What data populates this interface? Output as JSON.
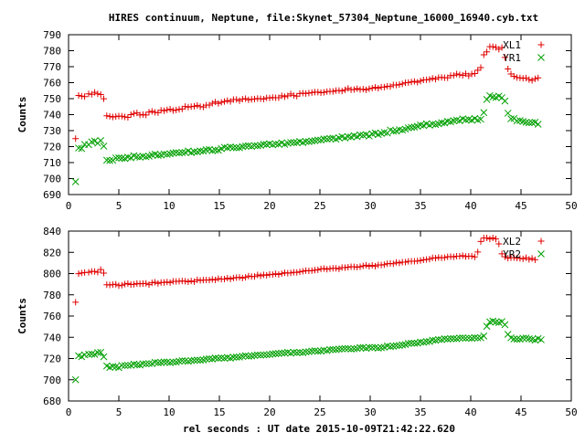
{
  "title": "HIRES continuum, Neptune, file:Skynet_57304_Neptune_16000_16940.cyb.txt",
  "xlabel": "rel seconds : UT date 2015-10-09T21:42:22.620",
  "colors": {
    "plus": "#e00000",
    "cross": "#00a000",
    "axis": "#000000"
  },
  "chart_data": [
    {
      "type": "scatter",
      "ylabel": "Counts",
      "xlim": [
        0,
        50
      ],
      "ylim": [
        690,
        790
      ],
      "xticks": [
        0,
        5,
        10,
        15,
        20,
        25,
        30,
        35,
        40,
        45,
        50
      ],
      "yticks": [
        690,
        700,
        710,
        720,
        730,
        740,
        750,
        760,
        770,
        780,
        790
      ],
      "grid": false,
      "legend_position": "top-right",
      "x": [
        0.7,
        1.0,
        1.3,
        1.6,
        2.0,
        2.3,
        2.6,
        2.9,
        3.2,
        3.5,
        3.8,
        4.1,
        4.4,
        4.7,
        5.0,
        5.3,
        5.6,
        5.9,
        6.2,
        6.5,
        6.8,
        7.1,
        7.4,
        7.7,
        8.0,
        8.3,
        8.6,
        8.9,
        9.2,
        9.5,
        9.8,
        10.1,
        10.4,
        10.7,
        11.0,
        11.3,
        11.6,
        11.9,
        12.2,
        12.5,
        12.8,
        13.1,
        13.4,
        13.7,
        14.0,
        14.3,
        14.6,
        14.9,
        15.2,
        15.5,
        15.8,
        16.1,
        16.4,
        16.7,
        17.0,
        17.3,
        17.6,
        17.9,
        18.2,
        18.5,
        18.8,
        19.1,
        19.4,
        19.7,
        20.0,
        20.3,
        20.6,
        20.9,
        21.2,
        21.5,
        21.8,
        22.1,
        22.4,
        22.7,
        23.0,
        23.3,
        23.6,
        23.9,
        24.2,
        24.5,
        24.8,
        25.1,
        25.4,
        25.7,
        26.0,
        26.3,
        26.6,
        26.9,
        27.2,
        27.5,
        27.8,
        28.1,
        28.4,
        28.7,
        29.0,
        29.3,
        29.6,
        29.9,
        30.2,
        30.5,
        30.8,
        31.1,
        31.4,
        31.7,
        32.0,
        32.3,
        32.6,
        32.9,
        33.2,
        33.5,
        33.8,
        34.1,
        34.4,
        34.7,
        35.0,
        35.3,
        35.6,
        35.9,
        36.2,
        36.5,
        36.8,
        37.1,
        37.4,
        37.7,
        38.0,
        38.3,
        38.6,
        38.9,
        39.2,
        39.5,
        39.8,
        40.1,
        40.4,
        40.7,
        41.0,
        41.3,
        41.6,
        41.9,
        42.2,
        42.5,
        42.8,
        43.1,
        43.4,
        43.7,
        44.0,
        44.3,
        44.6,
        44.9,
        45.2,
        45.5,
        45.8,
        46.1,
        46.4,
        46.7,
        47.0
      ],
      "series": [
        {
          "name": "XL1",
          "marker": "plus",
          "values": [
            725.0,
            752.0,
            751.6,
            751.3,
            753.0,
            752.7,
            753.9,
            753.0,
            752.6,
            749.9,
            739.3,
            738.9,
            738.5,
            738.8,
            739.1,
            739.0,
            738.6,
            738.3,
            740.0,
            740.7,
            741.1,
            739.8,
            740.1,
            739.8,
            741.6,
            742.1,
            741.4,
            741.2,
            742.7,
            742.4,
            743.0,
            743.4,
            742.6,
            742.9,
            743.3,
            743.6,
            745.1,
            744.7,
            745.0,
            745.2,
            745.8,
            745.0,
            744.8,
            745.9,
            746.0,
            747.1,
            747.9,
            747.0,
            747.7,
            748.2,
            748.8,
            748.3,
            749.4,
            749.5,
            748.7,
            749.7,
            750.0,
            749.3,
            749.6,
            749.8,
            750.1,
            749.9,
            749.7,
            750.5,
            750.4,
            750.7,
            750.6,
            750.6,
            751.8,
            751.2,
            751.8,
            752.9,
            751.9,
            751.6,
            753.2,
            753.4,
            753.2,
            753.5,
            753.8,
            754.1,
            754.1,
            753.7,
            753.9,
            754.4,
            754.6,
            754.5,
            755.1,
            755.1,
            754.8,
            755.5,
            756.4,
            755.6,
            755.7,
            756.3,
            755.7,
            755.9,
            755.5,
            756.2,
            756.6,
            757.1,
            756.5,
            757.2,
            757.2,
            757.8,
            757.6,
            758.6,
            758.5,
            758.8,
            759.2,
            759.9,
            760.1,
            760.4,
            760.8,
            760.3,
            761.0,
            761.7,
            761.8,
            762.0,
            762.7,
            762.2,
            763.2,
            763.3,
            763.1,
            763.1,
            764.4,
            764.5,
            765.4,
            764.9,
            764.6,
            765.6,
            764.3,
            765.4,
            765.7,
            767.8,
            769.4,
            777.4,
            779.3,
            782.5,
            782.5,
            782.1,
            780.9,
            782.0,
            775.8,
            768.6,
            765.4,
            764.0,
            763.2,
            763.0,
            762.7,
            762.9,
            761.9,
            761.4,
            762.4,
            763.0
          ]
        },
        {
          "name": "YR1",
          "marker": "cross",
          "values": [
            698.0,
            719.1,
            718.8,
            721.4,
            721.2,
            723.0,
            723.5,
            722.1,
            723.8,
            720.3,
            711.5,
            711.3,
            711.4,
            712.9,
            713.0,
            712.8,
            712.5,
            713.4,
            713.0,
            714.3,
            713.6,
            713.4,
            714.0,
            713.6,
            714.0,
            714.8,
            715.3,
            714.5,
            714.7,
            715.4,
            715.1,
            715.5,
            716.0,
            716.3,
            716.0,
            716.3,
            716.4,
            717.3,
            716.2,
            716.8,
            716.7,
            717.3,
            717.2,
            718.0,
            718.2,
            717.4,
            717.8,
            717.7,
            718.7,
            719.6,
            719.2,
            719.8,
            719.4,
            719.3,
            719.3,
            720.0,
            720.4,
            720.5,
            720.1,
            720.6,
            720.5,
            720.8,
            721.5,
            721.3,
            721.8,
            721.1,
            721.6,
            721.5,
            722.4,
            721.4,
            722.1,
            722.6,
            722.5,
            722.5,
            723.2,
            722.5,
            723.2,
            723.1,
            723.5,
            723.7,
            724.1,
            724.1,
            724.8,
            724.7,
            725.1,
            725.3,
            724.6,
            725.5,
            726.2,
            725.4,
            726.2,
            726.0,
            726.9,
            726.2,
            727.3,
            727.1,
            727.5,
            726.6,
            728.0,
            728.5,
            727.5,
            728.3,
            728.9,
            728.5,
            730.4,
            729.6,
            729.7,
            730.6,
            730.3,
            730.9,
            731.7,
            732.0,
            732.2,
            732.7,
            733.5,
            733.2,
            734.3,
            733.4,
            734.1,
            733.8,
            734.3,
            735.0,
            734.8,
            735.8,
            735.5,
            736.2,
            736.6,
            736.2,
            737.4,
            736.7,
            737.0,
            736.5,
            737.6,
            736.6,
            737.1,
            741.3,
            749.5,
            751.9,
            751.0,
            750.7,
            751.6,
            750.6,
            748.5,
            740.9,
            737.4,
            737.6,
            736.1,
            736.3,
            735.7,
            735.2,
            734.9,
            735.0,
            735.2,
            734.0
          ]
        }
      ]
    },
    {
      "type": "scatter",
      "ylabel": "Counts",
      "xlim": [
        0,
        50
      ],
      "ylim": [
        680,
        840
      ],
      "xticks": [
        0,
        5,
        10,
        15,
        20,
        25,
        30,
        35,
        40,
        45,
        50
      ],
      "yticks": [
        680,
        700,
        720,
        740,
        760,
        780,
        800,
        820,
        840
      ],
      "grid": false,
      "legend_position": "top-right",
      "x": [
        0.7,
        1.0,
        1.3,
        1.6,
        2.0,
        2.3,
        2.6,
        2.9,
        3.2,
        3.5,
        3.8,
        4.1,
        4.4,
        4.7,
        5.0,
        5.3,
        5.6,
        5.9,
        6.2,
        6.5,
        6.8,
        7.1,
        7.4,
        7.7,
        8.0,
        8.3,
        8.6,
        8.9,
        9.2,
        9.5,
        9.8,
        10.1,
        10.4,
        10.7,
        11.0,
        11.3,
        11.6,
        11.9,
        12.2,
        12.5,
        12.8,
        13.1,
        13.4,
        13.7,
        14.0,
        14.3,
        14.6,
        14.9,
        15.2,
        15.5,
        15.8,
        16.1,
        16.4,
        16.7,
        17.0,
        17.3,
        17.6,
        17.9,
        18.2,
        18.5,
        18.8,
        19.1,
        19.4,
        19.7,
        20.0,
        20.3,
        20.6,
        20.9,
        21.2,
        21.5,
        21.8,
        22.1,
        22.4,
        22.7,
        23.0,
        23.3,
        23.6,
        23.9,
        24.2,
        24.5,
        24.8,
        25.1,
        25.4,
        25.7,
        26.0,
        26.3,
        26.6,
        26.9,
        27.2,
        27.5,
        27.8,
        28.1,
        28.4,
        28.7,
        29.0,
        29.3,
        29.6,
        29.9,
        30.2,
        30.5,
        30.8,
        31.1,
        31.4,
        31.7,
        32.0,
        32.3,
        32.6,
        32.9,
        33.2,
        33.5,
        33.8,
        34.1,
        34.4,
        34.7,
        35.0,
        35.3,
        35.6,
        35.9,
        36.2,
        36.5,
        36.8,
        37.1,
        37.4,
        37.7,
        38.0,
        38.3,
        38.6,
        38.9,
        39.2,
        39.5,
        39.8,
        40.1,
        40.4,
        40.7,
        41.0,
        41.3,
        41.6,
        41.9,
        42.2,
        42.5,
        42.8,
        43.1,
        43.4,
        43.7,
        44.0,
        44.3,
        44.6,
        44.9,
        45.2,
        45.5,
        45.8,
        46.1,
        46.4,
        46.7,
        47.0
      ],
      "series": [
        {
          "name": "XL2",
          "marker": "plus",
          "values": [
            773.0,
            799.9,
            800.5,
            801.0,
            801.2,
            802.0,
            801.9,
            801.3,
            803.8,
            800.4,
            789.5,
            789.3,
            789.6,
            789.9,
            788.6,
            789.0,
            790.1,
            790.6,
            789.7,
            789.9,
            790.6,
            790.3,
            790.5,
            790.7,
            789.6,
            791.3,
            791.8,
            790.8,
            791.6,
            791.6,
            792.0,
            791.5,
            792.7,
            792.6,
            792.8,
            793.0,
            792.8,
            792.3,
            793.0,
            792.4,
            794.1,
            793.5,
            793.9,
            794.0,
            793.9,
            794.5,
            794.0,
            795.3,
            794.7,
            794.8,
            795.7,
            794.9,
            795.8,
            796.2,
            796.5,
            795.8,
            796.5,
            797.6,
            797.2,
            797.2,
            798.7,
            797.8,
            798.8,
            798.4,
            799.3,
            799.0,
            799.8,
            799.1,
            799.9,
            800.8,
            800.4,
            800.6,
            801.2,
            801.1,
            801.6,
            802.2,
            802.8,
            802.6,
            802.8,
            803.2,
            803.5,
            804.4,
            804.7,
            804.1,
            804.6,
            805.0,
            804.9,
            804.4,
            805.7,
            805.6,
            806.0,
            806.4,
            806.3,
            806.0,
            806.4,
            807.2,
            807.8,
            806.9,
            807.7,
            807.0,
            808.2,
            808.1,
            808.4,
            809.3,
            809.5,
            809.3,
            810.5,
            810.0,
            810.7,
            810.7,
            811.5,
            811.6,
            811.6,
            811.8,
            812.3,
            812.9,
            813.2,
            813.6,
            814.8,
            814.5,
            815.2,
            814.8,
            815.1,
            815.8,
            816.0,
            815.7,
            816.3,
            816.3,
            816.9,
            816.0,
            816.3,
            816.4,
            815.7,
            820.3,
            830.2,
            833.4,
            833.6,
            832.6,
            833.6,
            832.6,
            828.0,
            818.6,
            815.8,
            814.5,
            815.0,
            815.1,
            814.5,
            814.3,
            813.9,
            814.9,
            813.3,
            814.3,
            813.0
          ]
        },
        {
          "name": "YR2",
          "marker": "cross",
          "values": [
            700.0,
            722.6,
            721.7,
            723.5,
            724.0,
            724.2,
            723.9,
            725.6,
            725.8,
            721.6,
            713.0,
            711.6,
            712.6,
            712.2,
            711.4,
            713.5,
            713.4,
            713.5,
            713.6,
            714.7,
            714.1,
            713.9,
            715.1,
            715.0,
            715.2,
            715.2,
            716.5,
            716.0,
            716.1,
            716.8,
            716.7,
            716.1,
            716.6,
            716.7,
            717.4,
            718.0,
            717.8,
            717.3,
            718.0,
            718.3,
            718.5,
            718.4,
            718.7,
            719.5,
            719.8,
            719.6,
            720.4,
            720.2,
            720.6,
            720.3,
            721.0,
            720.3,
            721.2,
            721.3,
            721.4,
            722.1,
            722.7,
            722.1,
            722.4,
            722.9,
            723.4,
            723.2,
            723.4,
            723.5,
            723.8,
            724.4,
            724.5,
            724.7,
            725.1,
            725.3,
            725.8,
            725.0,
            725.8,
            725.5,
            725.8,
            725.5,
            726.2,
            726.4,
            727.0,
            727.3,
            726.8,
            727.0,
            727.9,
            727.4,
            728.4,
            728.5,
            728.4,
            728.8,
            729.1,
            729.4,
            729.4,
            728.9,
            729.2,
            729.4,
            730.3,
            730.4,
            729.6,
            730.5,
            730.4,
            730.5,
            729.8,
            730.2,
            730.7,
            731.8,
            731.2,
            731.6,
            732.1,
            732.2,
            732.8,
            733.1,
            734.2,
            734.4,
            734.4,
            734.5,
            735.5,
            735.2,
            735.9,
            736.0,
            737.3,
            737.1,
            737.9,
            737.8,
            738.6,
            738.3,
            738.7,
            738.8,
            738.6,
            739.3,
            739.5,
            739.1,
            739.2,
            739.0,
            739.7,
            739.4,
            739.5,
            741.2,
            750.3,
            754.5,
            755.3,
            754.3,
            753.9,
            754.7,
            751.8,
            742.8,
            739.5,
            738.4,
            738.2,
            738.2,
            739.2,
            739.3,
            738.6,
            738.1,
            737.3,
            738.8,
            737.7
          ]
        }
      ]
    }
  ]
}
